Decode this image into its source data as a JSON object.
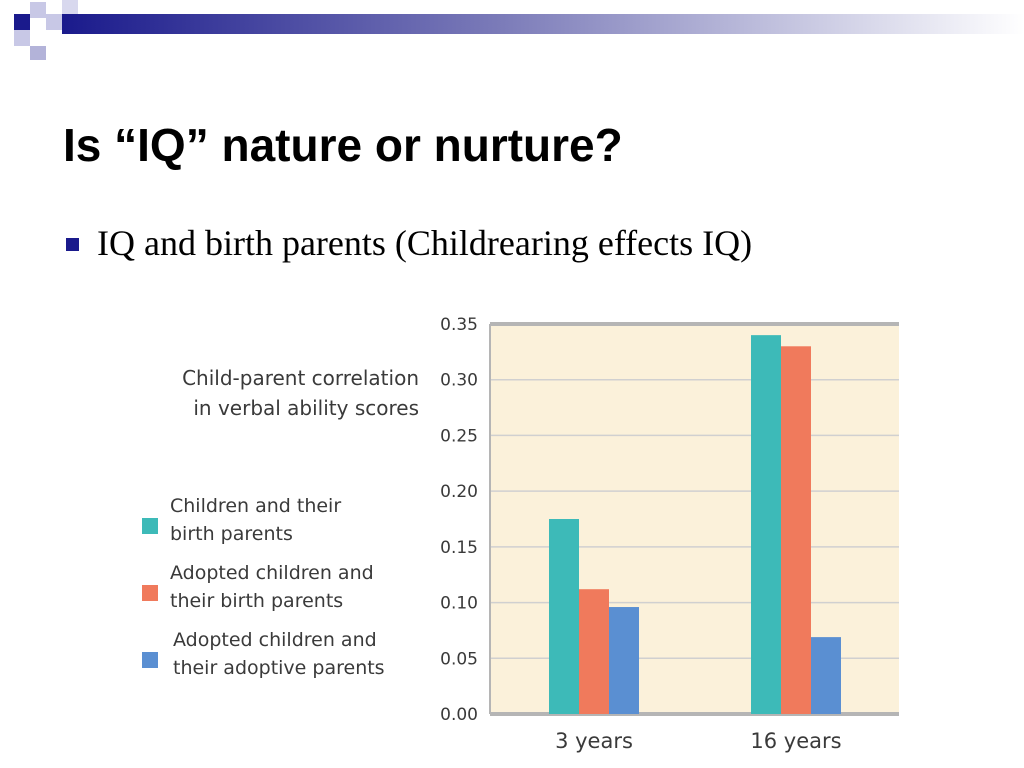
{
  "slide": {
    "title": "Is “IQ” nature or nurture?",
    "bullet": "IQ and birth parents (Childrearing effects IQ)"
  },
  "colors": {
    "header_dark": "#1a1a8c",
    "header_light": "#b3b3d9",
    "plot_bg": "#fbf1da",
    "grid": "#d0d0d0",
    "axis": "#b5b5b5"
  },
  "chart_data": {
    "type": "bar",
    "ylabel": [
      "Child-parent correlation",
      "in verbal ability scores"
    ],
    "categories": [
      "3 years",
      "16 years"
    ],
    "ylim": [
      0,
      0.35
    ],
    "yticks": [
      "0.00",
      "0.05",
      "0.10",
      "0.15",
      "0.20",
      "0.25",
      "0.30",
      "0.35"
    ],
    "grid": true,
    "legend_position": "left",
    "series": [
      {
        "name": [
          "Children and their",
          "birth parents"
        ],
        "color": "#3dbab8",
        "values": [
          0.175,
          0.34
        ]
      },
      {
        "name": [
          "Adopted children and",
          "their birth parents"
        ],
        "color": "#f07a5c",
        "values": [
          0.112,
          0.33
        ]
      },
      {
        "name": [
          "Adopted children and",
          "their adoptive parents"
        ],
        "color": "#5a8fd2",
        "values": [
          0.096,
          0.069
        ]
      }
    ]
  }
}
